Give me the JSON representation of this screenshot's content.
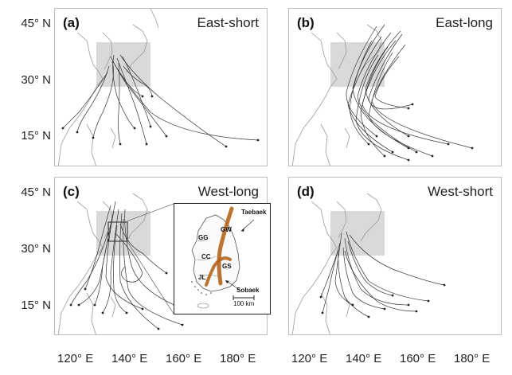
{
  "panels": [
    {
      "label": "(a)",
      "title": "East-short"
    },
    {
      "label": "(b)",
      "title": "East-long"
    },
    {
      "label": "(c)",
      "title": "West-long"
    },
    {
      "label": "(d)",
      "title": "West-short"
    }
  ],
  "latitude_labels": [
    "45° N",
    "30° N",
    "15° N"
  ],
  "longitude_labels": [
    "120° E",
    "140° E",
    "160° E",
    "180° E"
  ],
  "inset": {
    "regions": [
      "GG",
      "GW",
      "CC",
      "GS",
      "JL"
    ],
    "mountains": [
      "Taebaek",
      "Sobaek"
    ],
    "scale_label": "100 km"
  },
  "colors": {
    "frame": "#bdbdbd",
    "track": "#333333",
    "coast": "#9a9a9a",
    "box": "#d9d9d9",
    "ridge": "#b5651d"
  }
}
